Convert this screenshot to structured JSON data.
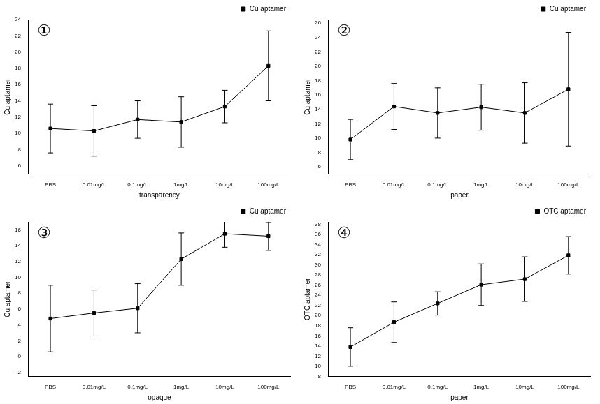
{
  "chart_data": [
    {
      "type": "line",
      "annotation": "①",
      "x_label": "transparency",
      "y_label": "Cu aptamer",
      "categories": [
        "PBS",
        "0.01mg/L",
        "0.1mg/L",
        "1mg/L",
        "10mg/L",
        "100mg/L"
      ],
      "series": [
        {
          "name": "Cu aptamer",
          "color": "#000000",
          "marker": "square",
          "line_style": "solid",
          "values": [
            10.6,
            10.3,
            11.7,
            11.4,
            13.3,
            18.3
          ],
          "errors": [
            3.0,
            3.1,
            2.3,
            3.1,
            2.0,
            4.3
          ]
        }
      ],
      "ylim": [
        5,
        24
      ],
      "yticks": [
        6,
        8,
        10,
        12,
        14,
        16,
        18,
        20,
        22,
        24
      ],
      "grid": false,
      "legend": "top right"
    },
    {
      "type": "line",
      "annotation": "②",
      "x_label": "paper",
      "y_label": "Cu aptamer",
      "categories": [
        "PBS",
        "0.01mg/L",
        "0.1mg/L",
        "1mg/L",
        "10mg/L",
        "100mg/L"
      ],
      "series": [
        {
          "name": "Cu aptamer",
          "color": "#000000",
          "marker": "square",
          "line_style": "solid",
          "values": [
            9.8,
            14.4,
            13.5,
            14.3,
            13.5,
            16.8
          ],
          "errors": [
            2.8,
            3.2,
            3.5,
            3.2,
            4.2,
            7.9
          ]
        }
      ],
      "ylim": [
        5,
        26.5
      ],
      "yticks": [
        6,
        8,
        10,
        12,
        14,
        16,
        18,
        20,
        22,
        24,
        26
      ],
      "grid": false,
      "legend": "top right"
    },
    {
      "type": "line",
      "annotation": "③",
      "x_label": "opaque",
      "y_label": "Cu aptamer",
      "categories": [
        "PBS",
        "0.01mg/L",
        "0.1mg/L",
        "1mg/L",
        "10mg/L",
        "100mg/L"
      ],
      "series": [
        {
          "name": "Cu aptamer",
          "color": "#000000",
          "marker": "square",
          "line_style": "solid",
          "values": [
            4.8,
            5.5,
            6.1,
            12.3,
            15.5,
            15.2
          ],
          "errors": [
            4.2,
            2.9,
            3.1,
            3.3,
            1.7,
            1.8
          ]
        }
      ],
      "ylim": [
        -2.5,
        17
      ],
      "yticks": [
        -2,
        0,
        2,
        4,
        6,
        8,
        10,
        12,
        14,
        16
      ],
      "grid": false,
      "legend": "top right"
    },
    {
      "type": "line",
      "annotation": "④",
      "x_label": "paper",
      "y_label": "OTC aptamer",
      "categories": [
        "PBS",
        "0.01mg/L",
        "0.1mg/L",
        "1mg/L",
        "10mg/L",
        "100mg/L"
      ],
      "series": [
        {
          "name": "OTC aptamer",
          "color": "#000000",
          "marker": "square",
          "line_style": "solid",
          "values": [
            13.8,
            18.7,
            22.4,
            26.1,
            27.2,
            31.9
          ],
          "errors": [
            3.8,
            4.0,
            2.3,
            4.1,
            4.4,
            3.7
          ]
        }
      ],
      "ylim": [
        8,
        38.5
      ],
      "yticks": [
        8,
        10,
        12,
        14,
        16,
        18,
        20,
        22,
        24,
        26,
        28,
        30,
        32,
        34,
        36,
        38
      ],
      "grid": false,
      "legend": "top right"
    }
  ]
}
